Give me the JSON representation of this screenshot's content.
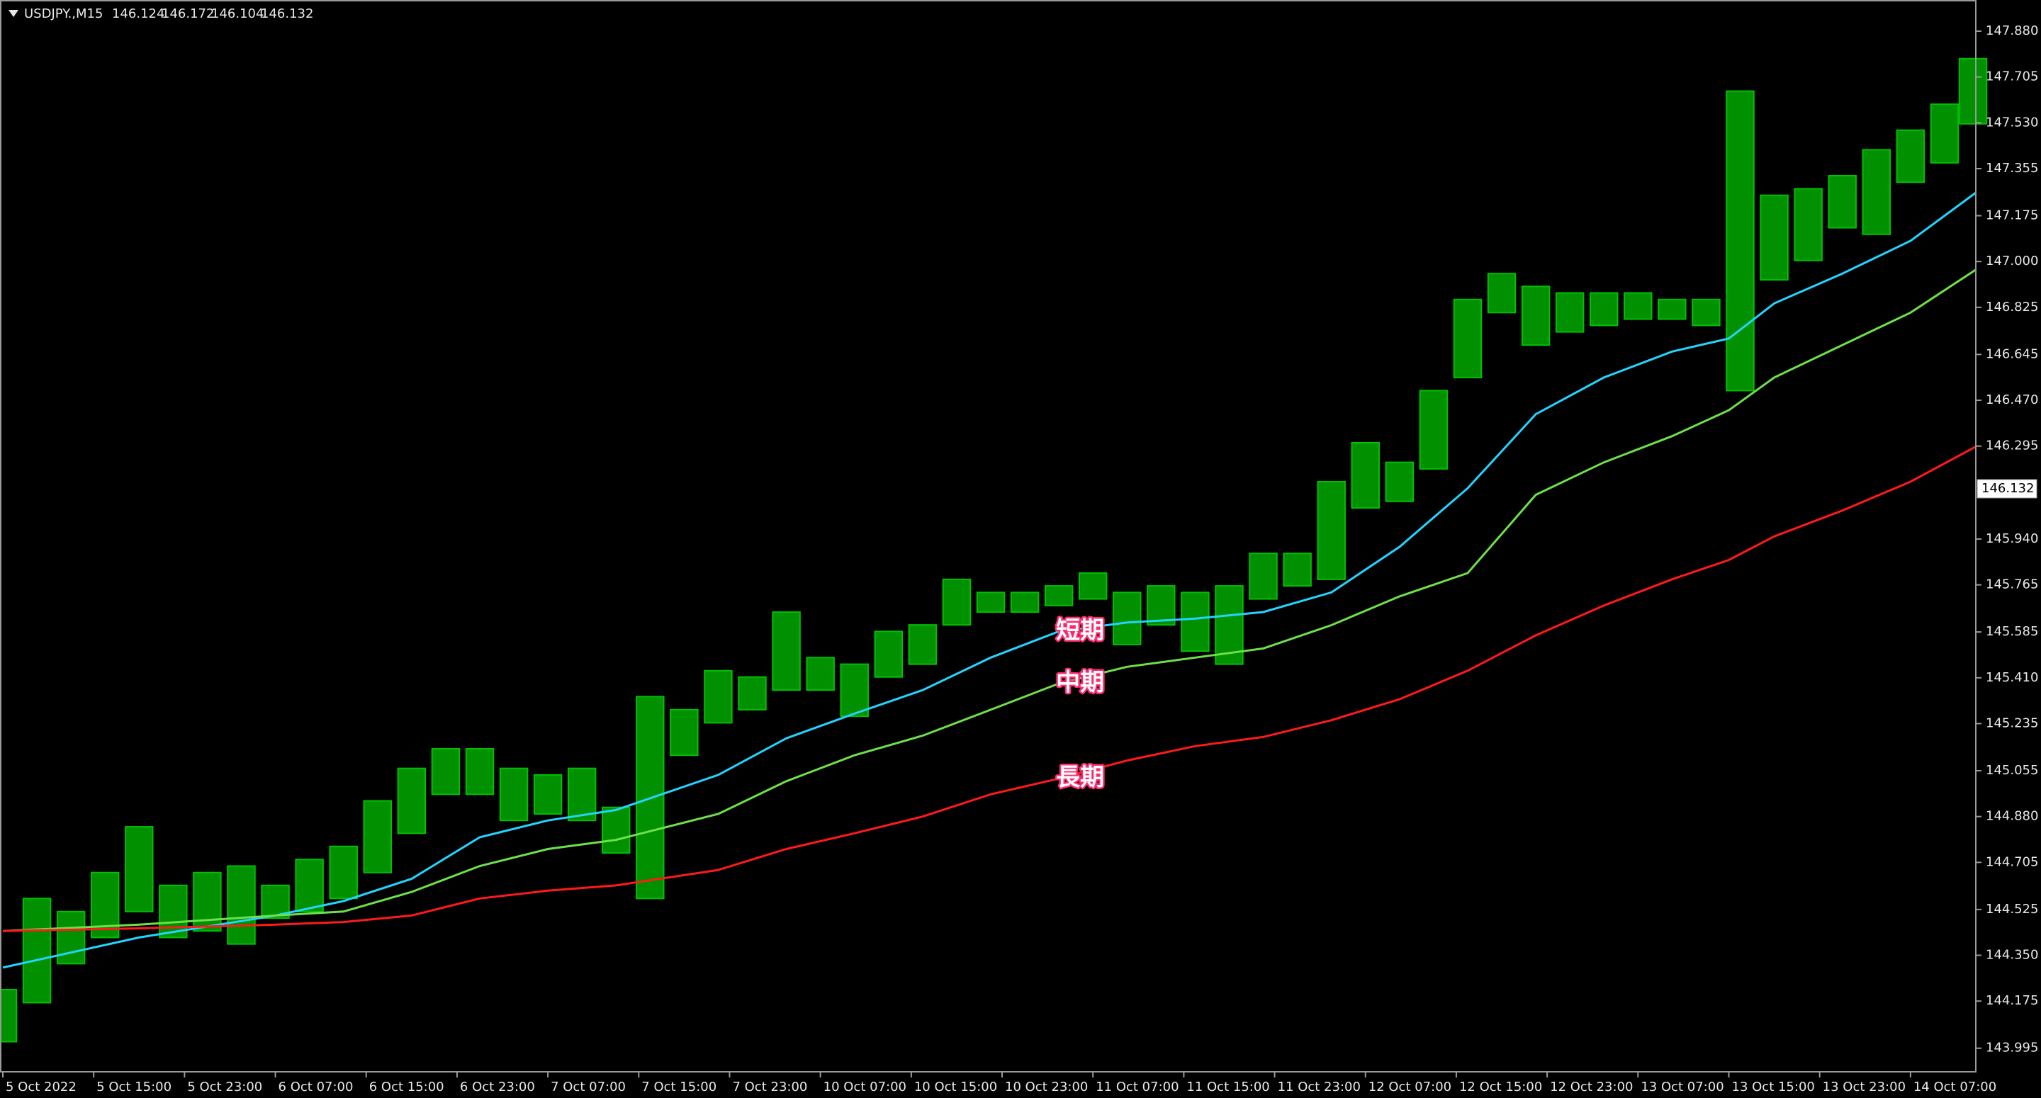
{
  "chart_data": {
    "type": "candlestick",
    "quote": {
      "symbol": "USDJPY.,M15",
      "open": 146.124,
      "high": 146.172,
      "low": 146.104,
      "close": 146.132
    },
    "xlim": [
      -1,
      695
    ],
    "xticks": [
      {
        "value": 0,
        "label": "5 Oct 2022"
      },
      {
        "value": 32,
        "label": "5 Oct 15:00"
      },
      {
        "value": 64,
        "label": "5 Oct 23:00"
      },
      {
        "value": 96,
        "label": "6 Oct 07:00"
      },
      {
        "value": 128,
        "label": "6 Oct 15:00"
      },
      {
        "value": 160,
        "label": "6 Oct 23:00"
      },
      {
        "value": 192,
        "label": "7 Oct 07:00"
      },
      {
        "value": 224,
        "label": "7 Oct 15:00"
      },
      {
        "value": 256,
        "label": "7 Oct 23:00"
      },
      {
        "value": 288,
        "label": "10 Oct 07:00"
      },
      {
        "value": 320,
        "label": "10 Oct 15:00"
      },
      {
        "value": 352,
        "label": "10 Oct 23:00"
      },
      {
        "value": 384,
        "label": "11 Oct 07:00"
      },
      {
        "value": 416,
        "label": "11 Oct 15:00"
      },
      {
        "value": 448,
        "label": "11 Oct 23:00"
      },
      {
        "value": 480,
        "label": "12 Oct 07:00"
      },
      {
        "value": 512,
        "label": "12 Oct 15:00"
      },
      {
        "value": 544,
        "label": "12 Oct 23:00"
      },
      {
        "value": 576,
        "label": "13 Oct 07:00"
      },
      {
        "value": 608,
        "label": "13 Oct 15:00"
      },
      {
        "value": 640,
        "label": "13 Oct 23:00"
      },
      {
        "value": 672,
        "label": "14 Oct 07:00"
      }
    ],
    "ylim": [
      143.905,
      147.999
    ],
    "yticks": [
      143.995,
      144.175,
      {
        "value": 144.35,
        "label": "144.350"
      },
      144.525,
      144.705,
      {
        "value": 144.88,
        "label": "144.880"
      },
      145.055,
      145.235,
      {
        "value": 145.41,
        "label": "145.410"
      },
      145.585,
      145.765,
      {
        "value": 145.94,
        "label": "145.940"
      },
      146.295,
      {
        "value": 146.47,
        "label": "146.470"
      },
      146.645,
      146.825,
      {
        "value": 147,
        "label": "147.000"
      },
      147.175,
      147.355,
      {
        "value": 147.53,
        "label": "147.530"
      },
      147.705,
      {
        "value": 147.88,
        "label": "147.880"
      }
    ],
    "candles": {
      "color": "#00c000",
      "x": [
        0,
        12,
        24,
        36,
        48,
        60,
        72,
        84,
        96,
        108,
        120,
        132,
        144,
        156,
        168,
        180,
        192,
        204,
        216,
        228,
        240,
        252,
        264,
        276,
        288,
        300,
        312,
        324,
        336,
        348,
        360,
        372,
        384,
        396,
        408,
        420,
        432,
        444,
        456,
        468,
        480,
        492,
        504,
        516,
        528,
        540,
        552,
        564,
        576,
        588,
        600,
        612,
        624,
        636,
        648,
        660,
        672,
        684,
        694
      ],
      "high": [
        144.219,
        144.567,
        144.517,
        144.666,
        144.841,
        144.617,
        144.666,
        144.691,
        144.617,
        144.716,
        144.766,
        144.94,
        145.064,
        145.139,
        145.139,
        145.064,
        145.039,
        145.064,
        144.915,
        145.338,
        145.288,
        145.437,
        145.413,
        145.661,
        145.487,
        145.462,
        145.587,
        145.612,
        145.786,
        145.736,
        145.736,
        145.761,
        145.81,
        145.736,
        145.761,
        145.736,
        145.761,
        145.885,
        145.885,
        146.159,
        146.308,
        146.233,
        146.507,
        146.855,
        146.954,
        146.905,
        146.88,
        146.88,
        146.88,
        146.855,
        146.855,
        147.651,
        147.253,
        147.278,
        147.328,
        147.427,
        147.502,
        147.601,
        147.775
      ],
      "low": [
        144.02,
        144.169,
        144.318,
        144.418,
        144.517,
        144.418,
        144.443,
        144.393,
        144.492,
        144.517,
        144.567,
        144.666,
        144.816,
        144.965,
        144.965,
        144.865,
        144.89,
        144.865,
        144.741,
        144.567,
        145.114,
        145.238,
        145.288,
        145.363,
        145.363,
        145.263,
        145.413,
        145.462,
        145.612,
        145.661,
        145.661,
        145.686,
        145.711,
        145.537,
        145.612,
        145.512,
        145.462,
        145.711,
        145.761,
        145.786,
        146.059,
        146.084,
        146.208,
        146.557,
        146.805,
        146.681,
        146.731,
        146.756,
        146.78,
        146.78,
        146.756,
        146.507,
        146.93,
        147.004,
        147.129,
        147.104,
        147.303,
        147.377,
        147.526
      ]
    },
    "x": [
      0,
      48,
      96,
      120,
      144,
      168,
      192,
      216,
      252,
      276,
      300,
      324,
      348,
      372,
      396,
      420,
      444,
      468,
      492,
      516,
      540,
      564,
      588,
      608,
      624,
      648,
      672,
      695
    ],
    "series": [
      {
        "name": "短期",
        "color": "#22d4ff",
        "values": [
          144.303,
          144.418,
          144.502,
          144.557,
          144.642,
          144.801,
          144.865,
          144.905,
          145.039,
          145.179,
          145.273,
          145.363,
          145.487,
          145.587,
          145.621,
          145.636,
          145.661,
          145.736,
          145.91,
          146.134,
          146.417,
          146.557,
          146.656,
          146.706,
          146.84,
          146.954,
          147.079,
          147.263
        ]
      },
      {
        "name": "中期",
        "color": "#6ee04a",
        "values": [
          144.443,
          144.467,
          144.502,
          144.517,
          144.592,
          144.691,
          144.756,
          144.791,
          144.89,
          145.015,
          145.114,
          145.189,
          145.288,
          145.388,
          145.452,
          145.487,
          145.522,
          145.611,
          145.721,
          145.81,
          146.109,
          146.233,
          146.333,
          146.432,
          146.557,
          146.681,
          146.805,
          146.969
        ]
      },
      {
        "name": "長期",
        "color": "#ff1a1a",
        "values": [
          144.443,
          144.453,
          144.467,
          144.477,
          144.502,
          144.567,
          144.597,
          144.617,
          144.676,
          144.756,
          144.816,
          144.88,
          144.965,
          145.025,
          145.094,
          145.149,
          145.184,
          145.248,
          145.328,
          145.437,
          145.572,
          145.686,
          145.786,
          145.86,
          145.95,
          146.049,
          146.159,
          146.293
        ]
      }
    ]
  }
}
